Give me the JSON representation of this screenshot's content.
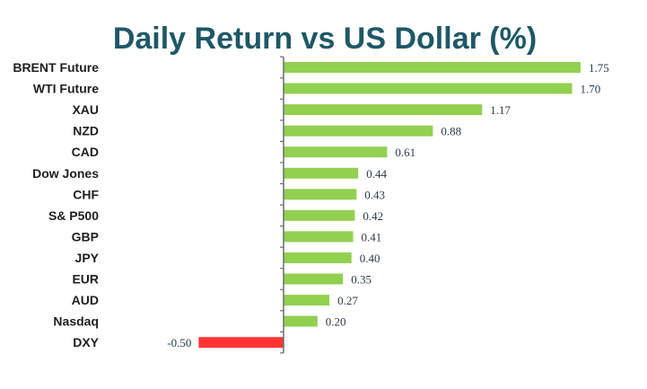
{
  "chart_data": {
    "type": "bar",
    "orientation": "horizontal",
    "title": "Daily Return vs US Dollar (%)",
    "categories": [
      "BRENT Future",
      "WTI Future",
      "XAU",
      "NZD",
      "CAD",
      "Dow Jones",
      "CHF",
      "S& P500",
      "GBP",
      "JPY",
      "EUR",
      "AUD",
      "Nasdaq",
      "DXY"
    ],
    "values": [
      1.75,
      1.7,
      1.17,
      0.88,
      0.61,
      0.44,
      0.43,
      0.42,
      0.41,
      0.4,
      0.35,
      0.27,
      0.2,
      -0.5
    ],
    "value_labels": [
      "1.75",
      "1.70",
      "1.17",
      "0.88",
      "0.61",
      "0.44",
      "0.43",
      "0.42",
      "0.41",
      "0.40",
      "0.35",
      "0.27",
      "0.20",
      "-0.50"
    ],
    "xlim": [
      -0.5,
      1.75
    ],
    "grid": false,
    "legend": "none",
    "colors": {
      "positive": "#92d050",
      "negative": "#ff3333",
      "title": "#1f5866",
      "axis": "#6d6d6d"
    }
  }
}
